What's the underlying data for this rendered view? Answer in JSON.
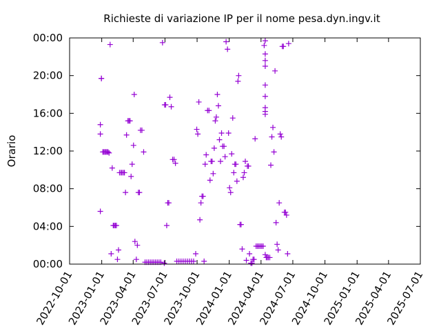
{
  "chart_data": {
    "type": "scatter",
    "title": "Richieste di variazione IP per il nome pesa.dyn.ingv.it",
    "xlabel": "",
    "ylabel": "Orario",
    "xlim": [
      "2022-10-01",
      "2025-07-01"
    ],
    "ylim": [
      0,
      24
    ],
    "x_ticks": [
      "2022-10-01",
      "2023-01-01",
      "2023-04-01",
      "2023-07-01",
      "2023-10-01",
      "2024-01-01",
      "2024-04-01",
      "2024-07-01",
      "2024-10-01",
      "2025-01-01",
      "2025-04-01",
      "2025-07-01"
    ],
    "y_ticks": [
      "00:00",
      "04:00",
      "08:00",
      "12:00",
      "16:00",
      "20:00",
      "00:00"
    ],
    "grid": false,
    "legend": "none",
    "marker": "plus",
    "color": "#9400d3",
    "series": [
      {
        "points": [
          [
            "2022-12-28",
            5.6
          ],
          [
            "2022-12-28",
            13.8
          ],
          [
            "2022-12-28",
            14.8
          ],
          [
            "2022-12-31",
            19.7
          ],
          [
            "2022-12-31",
            19.7
          ],
          [
            "2023-01-04",
            11.9
          ],
          [
            "2023-01-07",
            11.9
          ],
          [
            "2023-01-10",
            11.9
          ],
          [
            "2023-01-13",
            11.9
          ],
          [
            "2023-01-16",
            11.9
          ],
          [
            "2023-01-19",
            11.9
          ],
          [
            "2023-01-22",
            11.8
          ],
          [
            "2023-01-25",
            23.3
          ],
          [
            "2023-01-28",
            1.1
          ],
          [
            "2023-01-31",
            10.2
          ],
          [
            "2023-02-03",
            4.1
          ],
          [
            "2023-02-06",
            4.1
          ],
          [
            "2023-02-09",
            4.1
          ],
          [
            "2023-02-12",
            4.1
          ],
          [
            "2023-02-15",
            0.5
          ],
          [
            "2023-02-18",
            1.5
          ],
          [
            "2023-02-21",
            9.7
          ],
          [
            "2023-02-25",
            9.7
          ],
          [
            "2023-02-28",
            9.7
          ],
          [
            "2023-03-04",
            9.7
          ],
          [
            "2023-03-07",
            9.7
          ],
          [
            "2023-03-10",
            7.6
          ],
          [
            "2023-03-13",
            13.7
          ],
          [
            "2023-03-17",
            15.2
          ],
          [
            "2023-03-20",
            15.2
          ],
          [
            "2023-03-23",
            15.2
          ],
          [
            "2023-03-26",
            9.3
          ],
          [
            "2023-03-29",
            10.6
          ],
          [
            "2023-04-02",
            12.6
          ],
          [
            "2023-04-04",
            18.0
          ],
          [
            "2023-04-06",
            2.4
          ],
          [
            "2023-04-10",
            0.5
          ],
          [
            "2023-04-13",
            2.0
          ],
          [
            "2023-04-16",
            7.6
          ],
          [
            "2023-04-19",
            7.6
          ],
          [
            "2023-04-22",
            14.2
          ],
          [
            "2023-04-26",
            14.2
          ],
          [
            "2023-05-01",
            11.9
          ],
          [
            "2023-05-05",
            0.2
          ],
          [
            "2023-05-10",
            0.2
          ],
          [
            "2023-05-15",
            0.2
          ],
          [
            "2023-05-20",
            0.2
          ],
          [
            "2023-05-25",
            0.2
          ],
          [
            "2023-05-30",
            0.2
          ],
          [
            "2023-06-04",
            0.2
          ],
          [
            "2023-06-09",
            0.2
          ],
          [
            "2023-06-14",
            0.2
          ],
          [
            "2023-06-19",
            0.2
          ],
          [
            "2023-06-24",
            23.5
          ],
          [
            "2023-06-29",
            0.1
          ],
          [
            "2023-06-30",
            16.9
          ],
          [
            "2023-07-03",
            16.9
          ],
          [
            "2023-07-06",
            4.1
          ],
          [
            "2023-07-09",
            6.5
          ],
          [
            "2023-07-12",
            6.5
          ],
          [
            "2023-07-15",
            17.7
          ],
          [
            "2023-07-19",
            16.7
          ],
          [
            "2023-07-23",
            11.1
          ],
          [
            "2023-07-27",
            11.1
          ],
          [
            "2023-07-31",
            10.7
          ],
          [
            "2023-08-04",
            0.3
          ],
          [
            "2023-08-10",
            0.3
          ],
          [
            "2023-08-16",
            0.3
          ],
          [
            "2023-08-22",
            0.3
          ],
          [
            "2023-08-28",
            0.3
          ],
          [
            "2023-09-03",
            0.3
          ],
          [
            "2023-09-09",
            0.3
          ],
          [
            "2023-09-15",
            0.3
          ],
          [
            "2023-09-21",
            0.3
          ],
          [
            "2023-09-27",
            1.1
          ],
          [
            "2023-09-30",
            14.3
          ],
          [
            "2023-10-03",
            13.8
          ],
          [
            "2023-10-06",
            17.2
          ],
          [
            "2023-10-09",
            4.7
          ],
          [
            "2023-10-12",
            6.5
          ],
          [
            "2023-10-15",
            7.2
          ],
          [
            "2023-10-18",
            7.2
          ],
          [
            "2023-10-21",
            0.3
          ],
          [
            "2023-10-24",
            10.6
          ],
          [
            "2023-10-27",
            11.6
          ],
          [
            "2023-10-31",
            16.3
          ],
          [
            "2023-11-04",
            16.3
          ],
          [
            "2023-11-07",
            8.9
          ],
          [
            "2023-11-10",
            10.9
          ],
          [
            "2023-11-13",
            10.9
          ],
          [
            "2023-11-16",
            9.6
          ],
          [
            "2023-11-19",
            12.3
          ],
          [
            "2023-11-22",
            15.2
          ],
          [
            "2023-11-25",
            15.6
          ],
          [
            "2023-11-28",
            18.0
          ],
          [
            "2023-12-01",
            16.8
          ],
          [
            "2023-12-04",
            13.2
          ],
          [
            "2023-12-07",
            10.9
          ],
          [
            "2023-12-10",
            13.9
          ],
          [
            "2023-12-13",
            12.5
          ],
          [
            "2023-12-17",
            12.5
          ],
          [
            "2023-12-20",
            11.4
          ],
          [
            "2023-12-23",
            23.6
          ],
          [
            "2023-12-27",
            22.8
          ],
          [
            "2023-12-30",
            13.9
          ],
          [
            "2024-01-02",
            8.1
          ],
          [
            "2024-01-05",
            7.6
          ],
          [
            "2024-01-08",
            11.7
          ],
          [
            "2024-01-11",
            15.5
          ],
          [
            "2024-01-14",
            9.7
          ],
          [
            "2024-01-17",
            10.6
          ],
          [
            "2024-01-20",
            10.6
          ],
          [
            "2024-01-23",
            8.8
          ],
          [
            "2024-01-26",
            19.4
          ],
          [
            "2024-01-28",
            20.0
          ],
          [
            "2024-02-01",
            4.2
          ],
          [
            "2024-02-04",
            4.2
          ],
          [
            "2024-02-07",
            1.6
          ],
          [
            "2024-02-10",
            9.2
          ],
          [
            "2024-02-13",
            9.7
          ],
          [
            "2024-02-16",
            10.9
          ],
          [
            "2024-02-19",
            0.4
          ],
          [
            "2024-02-22",
            10.4
          ],
          [
            "2024-02-25",
            10.4
          ],
          [
            "2024-02-28",
            1.1
          ],
          [
            "2024-03-03",
            0.1
          ],
          [
            "2024-03-06",
            0.1
          ],
          [
            "2024-03-09",
            0.5
          ],
          [
            "2024-03-12",
            0.5
          ],
          [
            "2024-03-15",
            13.3
          ],
          [
            "2024-03-18",
            1.9
          ],
          [
            "2024-03-22",
            1.9
          ],
          [
            "2024-03-26",
            1.9
          ],
          [
            "2024-03-30",
            1.9
          ],
          [
            "2024-04-03",
            1.9
          ],
          [
            "2024-04-07",
            1.9
          ],
          [
            "2024-04-10",
            23.2
          ],
          [
            "2024-04-13",
            21.0
          ],
          [
            "2024-04-13",
            21.6
          ],
          [
            "2024-04-13",
            22.3
          ],
          [
            "2024-04-13",
            23.7
          ],
          [
            "2024-04-13",
            17.8
          ],
          [
            "2024-04-13",
            19.0
          ],
          [
            "2024-04-13",
            16.6
          ],
          [
            "2024-04-13",
            16.2
          ],
          [
            "2024-04-13",
            15.9
          ],
          [
            "2024-04-13",
            1.0
          ],
          [
            "2024-04-16",
            0.7
          ],
          [
            "2024-04-19",
            0.7
          ],
          [
            "2024-04-22",
            0.7
          ],
          [
            "2024-04-26",
            0.7
          ],
          [
            "2024-04-29",
            10.5
          ],
          [
            "2024-05-02",
            13.5
          ],
          [
            "2024-05-05",
            14.5
          ],
          [
            "2024-05-08",
            11.9
          ],
          [
            "2024-05-11",
            20.5
          ],
          [
            "2024-05-14",
            4.4
          ],
          [
            "2024-05-17",
            2.1
          ],
          [
            "2024-05-20",
            1.5
          ],
          [
            "2024-05-23",
            6.5
          ],
          [
            "2024-05-26",
            13.8
          ],
          [
            "2024-05-29",
            13.5
          ],
          [
            "2024-06-01",
            23.1
          ],
          [
            "2024-06-04",
            23.1
          ],
          [
            "2024-06-07",
            5.5
          ],
          [
            "2024-06-10",
            5.5
          ],
          [
            "2024-06-13",
            5.2
          ],
          [
            "2024-06-16",
            1.1
          ],
          [
            "2024-06-19",
            23.4
          ]
        ]
      }
    ]
  }
}
